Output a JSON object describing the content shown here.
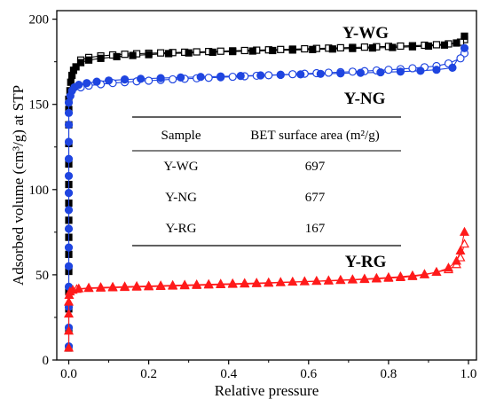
{
  "chart_data": {
    "type": "scatter",
    "xlabel": "Relative pressure",
    "ylabel": "Adsorbed volume (cm³/g) at STP",
    "xlim": [
      -0.03,
      1.02
    ],
    "ylim": [
      0,
      205
    ],
    "x_ticks": [
      "0.0",
      "0.2",
      "0.4",
      "0.6",
      "0.8",
      "1.0"
    ],
    "y_ticks": [
      "0",
      "50",
      "100",
      "150",
      "200"
    ],
    "grid": false,
    "series": [
      {
        "name": "Y-WG",
        "color": "#000000",
        "adsorption_marker": "filled-square",
        "desorption_marker": "open-square",
        "adsorption": {
          "x": [
            0.0,
            0.0,
            0.0,
            0.0,
            0.0,
            0.0,
            0.0,
            0.0,
            0.0,
            0.0,
            0.0,
            0.0,
            0.0,
            0.0,
            0.0,
            0.003,
            0.005,
            0.008,
            0.012,
            0.018,
            0.03,
            0.05,
            0.08,
            0.12,
            0.16,
            0.2,
            0.25,
            0.3,
            0.36,
            0.41,
            0.46,
            0.51,
            0.56,
            0.61,
            0.66,
            0.71,
            0.76,
            0.81,
            0.86,
            0.9,
            0.94,
            0.97,
            0.99
          ],
          "y": [
            7,
            18,
            30,
            40,
            52,
            62,
            72,
            82,
            92,
            103,
            115,
            127,
            138,
            147,
            153,
            158,
            163,
            167,
            170,
            172,
            174.5,
            176,
            177,
            178,
            178.7,
            179.2,
            179.8,
            180.2,
            180.6,
            181,
            181.3,
            181.6,
            181.9,
            182.2,
            182.5,
            182.8,
            183.1,
            183.4,
            183.8,
            184.2,
            184.8,
            186,
            190
          ]
        },
        "desorption": {
          "x": [
            0.99,
            0.98,
            0.95,
            0.92,
            0.89,
            0.86,
            0.83,
            0.8,
            0.77,
            0.74,
            0.71,
            0.68,
            0.65,
            0.62,
            0.59,
            0.56,
            0.53,
            0.5,
            0.47,
            0.44,
            0.41,
            0.38,
            0.35,
            0.32,
            0.29,
            0.26,
            0.23,
            0.2,
            0.17,
            0.14,
            0.11,
            0.08,
            0.05,
            0.03
          ],
          "y": [
            188,
            186.5,
            185.5,
            185,
            184.7,
            184.4,
            184.2,
            184,
            183.8,
            183.6,
            183.4,
            183.2,
            183,
            182.8,
            182.6,
            182.4,
            182.2,
            182,
            181.8,
            181.6,
            181.4,
            181.2,
            181,
            180.8,
            180.6,
            180.4,
            180.2,
            180,
            179.7,
            179.4,
            179,
            178.4,
            177.5,
            176
          ]
        }
      },
      {
        "name": "Y-NG",
        "color": "#1f45e0",
        "adsorption_marker": "filled-circle",
        "desorption_marker": "open-circle",
        "adsorption": {
          "x": [
            0.0,
            0.0,
            0.0,
            0.0,
            0.0,
            0.0,
            0.0,
            0.0,
            0.0,
            0.0,
            0.0,
            0.0,
            0.0,
            0.0,
            0.0,
            0.004,
            0.008,
            0.014,
            0.025,
            0.045,
            0.07,
            0.1,
            0.14,
            0.18,
            0.23,
            0.28,
            0.33,
            0.38,
            0.43,
            0.48,
            0.53,
            0.58,
            0.63,
            0.68,
            0.73,
            0.78,
            0.83,
            0.88,
            0.92,
            0.96,
            0.99
          ],
          "y": [
            8,
            19,
            31,
            43,
            55,
            66,
            77,
            88,
            98,
            108,
            118,
            128,
            138,
            145,
            151,
            155,
            158,
            160,
            161.5,
            162.5,
            163.3,
            164,
            164.6,
            165,
            165.4,
            165.8,
            166.1,
            166.4,
            166.7,
            167,
            167.3,
            167.6,
            167.9,
            168.2,
            168.5,
            168.8,
            169.2,
            169.7,
            170.3,
            171.5,
            183
          ]
        },
        "desorption": {
          "x": [
            0.99,
            0.98,
            0.95,
            0.92,
            0.89,
            0.86,
            0.83,
            0.8,
            0.77,
            0.74,
            0.71,
            0.68,
            0.65,
            0.62,
            0.59,
            0.56,
            0.53,
            0.5,
            0.47,
            0.44,
            0.41,
            0.38,
            0.35,
            0.32,
            0.29,
            0.26,
            0.23,
            0.2,
            0.17,
            0.14,
            0.11,
            0.08,
            0.05,
            0.03
          ],
          "y": [
            180,
            177,
            174,
            172.5,
            171.8,
            171.2,
            170.7,
            170.3,
            169.9,
            169.5,
            169.2,
            168.9,
            168.6,
            168.3,
            168,
            167.7,
            167.4,
            167.1,
            166.8,
            166.5,
            166.2,
            165.9,
            165.6,
            165.3,
            165,
            164.7,
            164.3,
            163.9,
            163.5,
            163,
            162.5,
            161.8,
            161,
            160
          ]
        }
      },
      {
        "name": "Y-RG",
        "color": "#ff1a1a",
        "adsorption_marker": "filled-triangle",
        "desorption_marker": "open-triangle",
        "adsorption": {
          "x": [
            0.0,
            0.0,
            0.0,
            0.0,
            0.001,
            0.003,
            0.01,
            0.025,
            0.05,
            0.08,
            0.11,
            0.14,
            0.17,
            0.2,
            0.23,
            0.26,
            0.29,
            0.32,
            0.35,
            0.38,
            0.41,
            0.44,
            0.47,
            0.5,
            0.53,
            0.56,
            0.59,
            0.62,
            0.65,
            0.68,
            0.71,
            0.74,
            0.77,
            0.8,
            0.83,
            0.86,
            0.89,
            0.92,
            0.95,
            0.97,
            0.98,
            0.99
          ],
          "y": [
            7,
            17,
            27,
            34,
            38,
            40,
            41,
            41.8,
            42.3,
            42.6,
            42.8,
            43,
            43.2,
            43.4,
            43.6,
            43.8,
            44,
            44.2,
            44.4,
            44.6,
            44.8,
            45,
            45.2,
            45.4,
            45.6,
            45.8,
            46,
            46.2,
            46.4,
            46.7,
            47,
            47.3,
            47.6,
            48,
            48.4,
            49,
            50,
            51.5,
            54,
            58,
            64,
            75
          ]
        },
        "desorption": {
          "x": [
            0.99,
            0.98,
            0.97,
            0.95,
            0.92,
            0.89,
            0.86,
            0.83,
            0.8,
            0.77,
            0.74,
            0.71,
            0.68,
            0.65,
            0.62,
            0.59,
            0.56,
            0.53,
            0.5,
            0.47,
            0.44,
            0.41,
            0.38,
            0.35,
            0.32,
            0.29,
            0.26,
            0.23,
            0.2,
            0.17,
            0.14,
            0.11,
            0.08,
            0.05,
            0.02
          ],
          "y": [
            68,
            60,
            56,
            53,
            51.5,
            50.3,
            49.5,
            48.9,
            48.4,
            48,
            47.6,
            47.2,
            46.9,
            46.6,
            46.3,
            46,
            45.7,
            45.4,
            45.1,
            44.8,
            44.6,
            44.4,
            44.2,
            44,
            43.8,
            43.6,
            43.4,
            43.2,
            43,
            42.8,
            42.6,
            42.4,
            42.2,
            42,
            41.5
          ]
        }
      }
    ],
    "table": {
      "headers": [
        "Sample",
        "BET surface area (m²/g)"
      ],
      "rows": [
        [
          "Y-WG",
          "697"
        ],
        [
          "Y-NG",
          "677"
        ],
        [
          "Y-RG",
          "167"
        ]
      ]
    }
  }
}
